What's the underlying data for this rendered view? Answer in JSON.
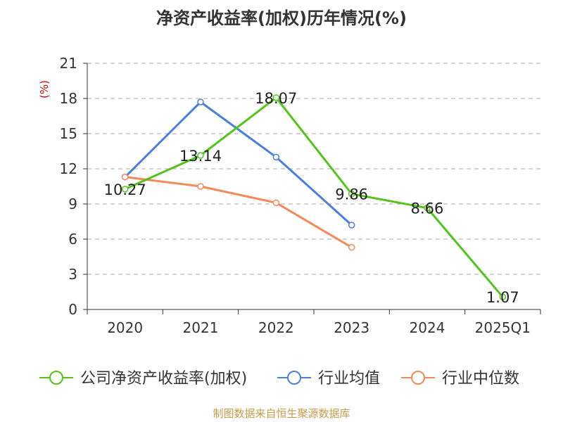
{
  "title": "净资产收益率(加权)历年情况(%)",
  "source": "制图数据来自恒生聚源数据库",
  "colors": {
    "axis": "#333333",
    "grid": "#aaaaaa",
    "unit": "#cc0000",
    "company": "#52c41a",
    "industry_avg": "#4a7fdc",
    "industry_median": "#f5895a",
    "source": "#c89b4a"
  },
  "chart_data": {
    "type": "line",
    "title": "净资产收益率(加权)历年情况(%)",
    "ylabel": "(%)",
    "xlabel": "",
    "ylim": [
      0,
      21
    ],
    "yticks": [
      0,
      3,
      6,
      9,
      12,
      15,
      18,
      21
    ],
    "grid": true,
    "legend_position": "bottom",
    "categories": [
      "2020",
      "2021",
      "2022",
      "2023",
      "2024",
      "2025Q1"
    ],
    "series": [
      {
        "name": "公司净资产收益率(加权)",
        "key": "company",
        "values": [
          10.27,
          13.14,
          18.07,
          9.86,
          8.66,
          1.07
        ],
        "labels": [
          "10.27",
          "13.14",
          "18.07",
          "9.86",
          "8.66",
          "1.07"
        ]
      },
      {
        "name": "行业均值",
        "key": "industry_avg",
        "values": [
          11.3,
          17.7,
          13.0,
          7.2,
          null,
          null
        ]
      },
      {
        "name": "行业中位数",
        "key": "industry_median",
        "values": [
          11.3,
          10.5,
          9.1,
          5.3,
          null,
          null
        ]
      }
    ]
  }
}
